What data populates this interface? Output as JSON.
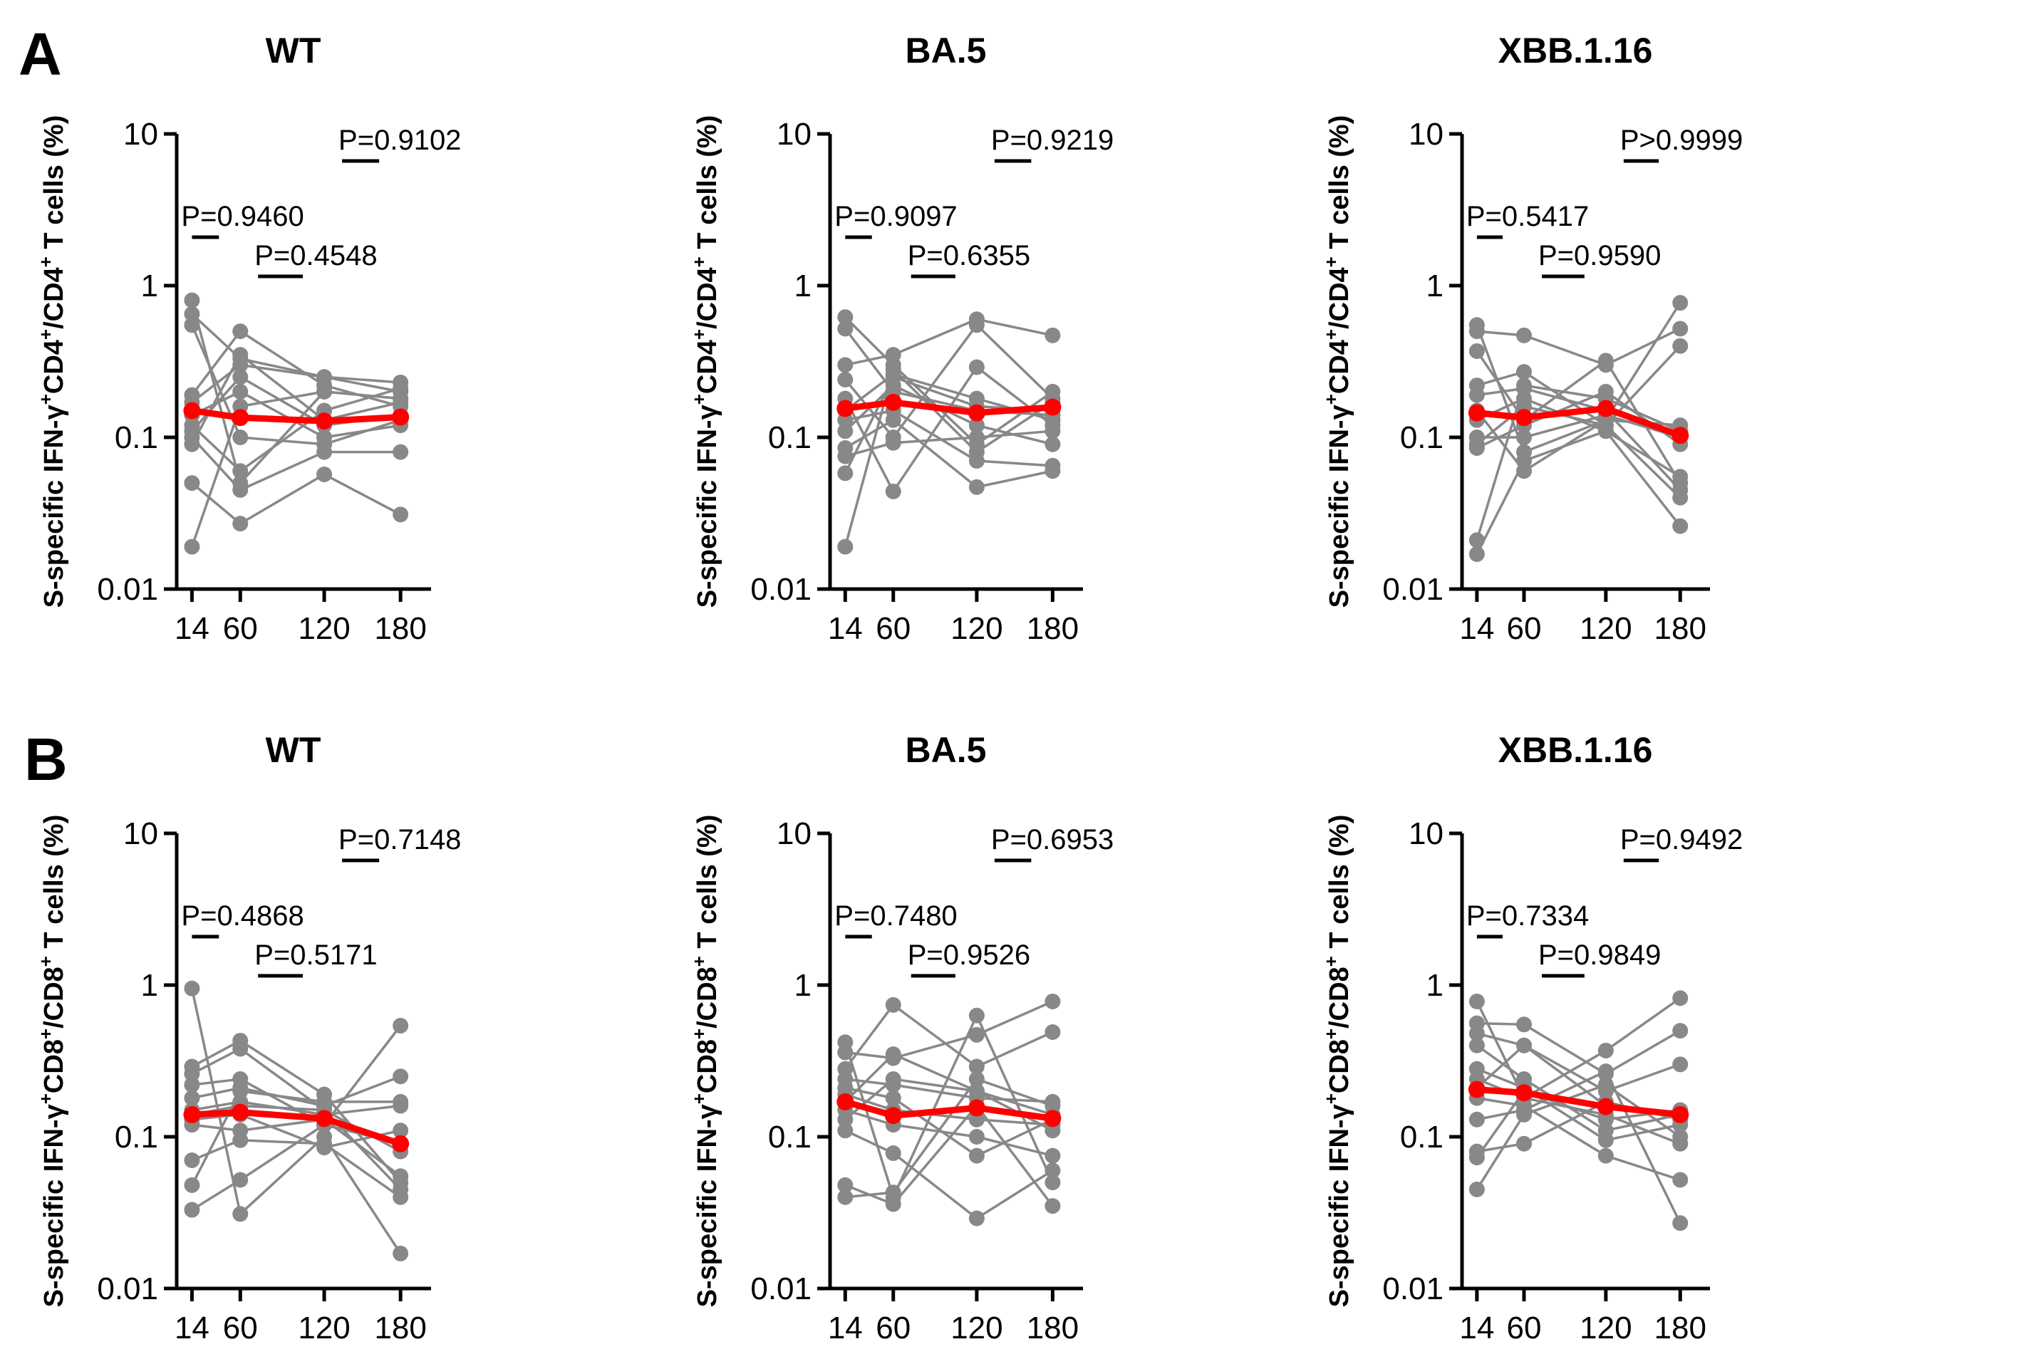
{
  "panels": [
    {
      "letter": "A"
    },
    {
      "letter": "B"
    }
  ],
  "chart_data": [
    {
      "type": "line",
      "panel": "A",
      "title": "WT",
      "ylabel_html": [
        "S-specific IFN-γ",
        "+",
        "CD4",
        "+",
        "/CD4",
        "+",
        " T cells (%)"
      ],
      "xlabel": "",
      "x": [
        14,
        60,
        120,
        180
      ],
      "x_tick_labels": [
        "14",
        "60",
        "120",
        "180"
      ],
      "yscale": "log",
      "ylim": [
        0.01,
        10
      ],
      "y_tick_labels": [
        "10",
        "1",
        "0.1",
        "0.01"
      ],
      "comparisons": [
        {
          "label": "P=0.9460",
          "from": 14,
          "to": 60
        },
        {
          "label": "P=0.4548",
          "from": 60,
          "to": 120
        },
        {
          "label": "P=0.9102",
          "from": 120,
          "to": 180
        }
      ],
      "series": [
        {
          "name": "s1",
          "values": [
            0.8,
            0.05,
            0.2,
            0.18
          ]
        },
        {
          "name": "s2",
          "values": [
            0.65,
            0.33,
            0.25,
            0.2
          ]
        },
        {
          "name": "s3",
          "values": [
            0.55,
            0.1,
            0.09,
            0.13
          ]
        },
        {
          "name": "s4",
          "values": [
            0.19,
            0.5,
            0.22,
            0.16
          ]
        },
        {
          "name": "s5",
          "values": [
            0.17,
            0.3,
            0.25,
            0.23
          ]
        },
        {
          "name": "s6",
          "values": [
            0.14,
            0.2,
            0.1,
            0.12
          ]
        },
        {
          "name": "s7",
          "values": [
            0.12,
            0.06,
            0.15,
            0.21
          ]
        },
        {
          "name": "s8",
          "values": [
            0.11,
            0.25,
            0.12,
            0.14
          ]
        },
        {
          "name": "s9",
          "values": [
            0.1,
            0.045,
            0.08,
            0.08
          ]
        },
        {
          "name": "s10",
          "values": [
            0.09,
            0.35,
            0.13,
            0.17
          ]
        },
        {
          "name": "s11",
          "values": [
            0.05,
            0.027,
            0.057,
            0.031
          ]
        },
        {
          "name": "s12",
          "values": [
            0.019,
            0.16,
            0.2,
            0.18
          ]
        }
      ],
      "median": [
        0.15,
        0.135,
        0.128,
        0.136
      ]
    },
    {
      "type": "line",
      "panel": "A",
      "title": "BA.5",
      "ylabel_html": [
        "S-specific IFN-γ",
        "+",
        "CD4",
        "+",
        "/CD4",
        "+",
        " T cells (%)"
      ],
      "xlabel": "",
      "x": [
        14,
        60,
        120,
        180
      ],
      "x_tick_labels": [
        "14",
        "60",
        "120",
        "180"
      ],
      "yscale": "log",
      "ylim": [
        0.01,
        10
      ],
      "y_tick_labels": [
        "10",
        "1",
        "0.1",
        "0.01"
      ],
      "comparisons": [
        {
          "label": "P=0.9097",
          "from": 14,
          "to": 60
        },
        {
          "label": "P=0.6355",
          "from": 60,
          "to": 120
        },
        {
          "label": "P=0.9219",
          "from": 120,
          "to": 180
        }
      ],
      "series": [
        {
          "name": "s1",
          "values": [
            0.62,
            0.3,
            0.09,
            0.2
          ]
        },
        {
          "name": "s2",
          "values": [
            0.52,
            0.2,
            0.15,
            0.14
          ]
        },
        {
          "name": "s3",
          "values": [
            0.3,
            0.35,
            0.6,
            0.47
          ]
        },
        {
          "name": "s4",
          "values": [
            0.24,
            0.1,
            0.55,
            0.18
          ]
        },
        {
          "name": "s5",
          "values": [
            0.18,
            0.044,
            0.29,
            0.12
          ]
        },
        {
          "name": "s6",
          "values": [
            0.15,
            0.26,
            0.18,
            0.13
          ]
        },
        {
          "name": "s7",
          "values": [
            0.13,
            0.15,
            0.07,
            0.065
          ]
        },
        {
          "name": "s8",
          "values": [
            0.11,
            0.22,
            0.12,
            0.09
          ]
        },
        {
          "name": "s9",
          "values": [
            0.085,
            0.13,
            0.047,
            0.06
          ]
        },
        {
          "name": "s10",
          "values": [
            0.075,
            0.092,
            0.1,
            0.11
          ]
        },
        {
          "name": "s11",
          "values": [
            0.058,
            0.25,
            0.16,
            0.15
          ]
        },
        {
          "name": "s12",
          "values": [
            0.019,
            0.28,
            0.08,
            0.17
          ]
        }
      ],
      "median": [
        0.155,
        0.17,
        0.145,
        0.158
      ]
    },
    {
      "type": "line",
      "panel": "A",
      "title": "XBB.1.16",
      "ylabel_html": [
        "S-specific IFN-γ",
        "+",
        "CD4",
        "+",
        "/CD4",
        "+",
        " T cells (%)"
      ],
      "xlabel": "",
      "x": [
        14,
        60,
        120,
        180
      ],
      "x_tick_labels": [
        "14",
        "60",
        "120",
        "180"
      ],
      "yscale": "log",
      "ylim": [
        0.01,
        10
      ],
      "y_tick_labels": [
        "10",
        "1",
        "0.1",
        "0.01"
      ],
      "comparisons": [
        {
          "label": "P=0.5417",
          "from": 14,
          "to": 60
        },
        {
          "label": "P=0.9590",
          "from": 60,
          "to": 120
        },
        {
          "label": "P>0.9999",
          "from": 120,
          "to": 180
        }
      ],
      "series": [
        {
          "name": "s1",
          "values": [
            0.55,
            0.08,
            0.13,
            0.77
          ]
        },
        {
          "name": "s2",
          "values": [
            0.5,
            0.47,
            0.3,
            0.52
          ]
        },
        {
          "name": "s3",
          "values": [
            0.37,
            0.13,
            0.32,
            0.05
          ]
        },
        {
          "name": "s4",
          "values": [
            0.22,
            0.27,
            0.12,
            0.4
          ]
        },
        {
          "name": "s5",
          "values": [
            0.19,
            0.21,
            0.15,
            0.045
          ]
        },
        {
          "name": "s6",
          "values": [
            0.15,
            0.06,
            0.13,
            0.12
          ]
        },
        {
          "name": "s7",
          "values": [
            0.13,
            0.18,
            0.11,
            0.026
          ]
        },
        {
          "name": "s8",
          "values": [
            0.1,
            0.1,
            0.14,
            0.1
          ]
        },
        {
          "name": "s9",
          "values": [
            0.09,
            0.16,
            0.12,
            0.04
          ]
        },
        {
          "name": "s10",
          "values": [
            0.085,
            0.12,
            0.2,
            0.09
          ]
        },
        {
          "name": "s11",
          "values": [
            0.021,
            0.22,
            0.18,
            0.11
          ]
        },
        {
          "name": "s12",
          "values": [
            0.017,
            0.07,
            0.11,
            0.055
          ]
        }
      ],
      "median": [
        0.145,
        0.135,
        0.155,
        0.103
      ]
    },
    {
      "type": "line",
      "panel": "B",
      "title": "WT",
      "ylabel_html": [
        "S-specific IFN-γ",
        "+",
        "CD8",
        "+",
        "/CD8",
        "+",
        " T cells (%)"
      ],
      "xlabel": "",
      "x": [
        14,
        60,
        120,
        180
      ],
      "x_tick_labels": [
        "14",
        "60",
        "120",
        "180"
      ],
      "yscale": "log",
      "ylim": [
        0.01,
        10
      ],
      "y_tick_labels": [
        "10",
        "1",
        "0.1",
        "0.01"
      ],
      "comparisons": [
        {
          "label": "P=0.4868",
          "from": 14,
          "to": 60
        },
        {
          "label": "P=0.5171",
          "from": 60,
          "to": 120
        },
        {
          "label": "P=0.7148",
          "from": 120,
          "to": 180
        }
      ],
      "series": [
        {
          "name": "s1",
          "values": [
            0.95,
            0.031,
            0.1,
            0.017
          ]
        },
        {
          "name": "s2",
          "values": [
            0.29,
            0.43,
            0.19,
            0.05
          ]
        },
        {
          "name": "s3",
          "values": [
            0.26,
            0.38,
            0.15,
            0.045
          ]
        },
        {
          "name": "s4",
          "values": [
            0.22,
            0.24,
            0.12,
            0.54
          ]
        },
        {
          "name": "s5",
          "values": [
            0.18,
            0.21,
            0.16,
            0.25
          ]
        },
        {
          "name": "s6",
          "values": [
            0.15,
            0.17,
            0.14,
            0.16
          ]
        },
        {
          "name": "s7",
          "values": [
            0.13,
            0.14,
            0.085,
            0.11
          ]
        },
        {
          "name": "s8",
          "values": [
            0.12,
            0.11,
            0.13,
            0.055
          ]
        },
        {
          "name": "s9",
          "values": [
            0.07,
            0.095,
            0.09,
            0.04
          ]
        },
        {
          "name": "s10",
          "values": [
            0.048,
            0.2,
            0.17,
            0.17
          ]
        },
        {
          "name": "s11",
          "values": [
            0.033,
            0.052,
            0.12,
            0.09
          ]
        },
        {
          "name": "s12",
          "values": [
            0.14,
            0.16,
            0.15,
            0.08
          ]
        }
      ],
      "median": [
        0.14,
        0.145,
        0.132,
        0.09
      ]
    },
    {
      "type": "line",
      "panel": "B",
      "title": "BA.5",
      "ylabel_html": [
        "S-specific IFN-γ",
        "+",
        "CD8",
        "+",
        "/CD8",
        "+",
        " T cells (%)"
      ],
      "xlabel": "",
      "x": [
        14,
        60,
        120,
        180
      ],
      "x_tick_labels": [
        "14",
        "60",
        "120",
        "180"
      ],
      "yscale": "log",
      "ylim": [
        0.01,
        10
      ],
      "y_tick_labels": [
        "10",
        "1",
        "0.1",
        "0.01"
      ],
      "comparisons": [
        {
          "label": "P=0.7480",
          "from": 14,
          "to": 60
        },
        {
          "label": "P=0.9526",
          "from": 60,
          "to": 120
        },
        {
          "label": "P=0.6953",
          "from": 120,
          "to": 180
        }
      ],
      "series": [
        {
          "name": "s1",
          "values": [
            0.42,
            0.04,
            0.63,
            0.05
          ]
        },
        {
          "name": "s2",
          "values": [
            0.36,
            0.33,
            0.47,
            0.78
          ]
        },
        {
          "name": "s3",
          "values": [
            0.28,
            0.74,
            0.29,
            0.49
          ]
        },
        {
          "name": "s4",
          "values": [
            0.24,
            0.22,
            0.18,
            0.17
          ]
        },
        {
          "name": "s5",
          "values": [
            0.21,
            0.18,
            0.075,
            0.13
          ]
        },
        {
          "name": "s6",
          "values": [
            0.19,
            0.15,
            0.13,
            0.12
          ]
        },
        {
          "name": "s7",
          "values": [
            0.15,
            0.12,
            0.1,
            0.075
          ]
        },
        {
          "name": "s8",
          "values": [
            0.11,
            0.078,
            0.029,
            0.06
          ]
        },
        {
          "name": "s9",
          "values": [
            0.048,
            0.036,
            0.16,
            0.035
          ]
        },
        {
          "name": "s10",
          "values": [
            0.04,
            0.043,
            0.24,
            0.16
          ]
        },
        {
          "name": "s11",
          "values": [
            0.17,
            0.35,
            0.2,
            0.11
          ]
        },
        {
          "name": "s12",
          "values": [
            0.13,
            0.24,
            0.2,
            0.14
          ]
        }
      ],
      "median": [
        0.17,
        0.138,
        0.155,
        0.132
      ]
    },
    {
      "type": "line",
      "panel": "B",
      "title": "XBB.1.16",
      "ylabel_html": [
        "S-specific IFN-γ",
        "+",
        "CD8",
        "+",
        "/CD8",
        "+",
        " T cells (%)"
      ],
      "xlabel": "",
      "x": [
        14,
        60,
        120,
        180
      ],
      "x_tick_labels": [
        "14",
        "60",
        "120",
        "180"
      ],
      "yscale": "log",
      "ylim": [
        0.01,
        10
      ],
      "y_tick_labels": [
        "10",
        "1",
        "0.1",
        "0.01"
      ],
      "comparisons": [
        {
          "label": "P=0.7334",
          "from": 14,
          "to": 60
        },
        {
          "label": "P=0.9849",
          "from": 60,
          "to": 120
        },
        {
          "label": "P=0.9492",
          "from": 120,
          "to": 180
        }
      ],
      "series": [
        {
          "name": "s1",
          "values": [
            0.78,
            0.18,
            0.37,
            0.82
          ]
        },
        {
          "name": "s2",
          "values": [
            0.56,
            0.55,
            0.26,
            0.5
          ]
        },
        {
          "name": "s3",
          "values": [
            0.48,
            0.4,
            0.2,
            0.3
          ]
        },
        {
          "name": "s4",
          "values": [
            0.4,
            0.24,
            0.11,
            0.14
          ]
        },
        {
          "name": "s5",
          "values": [
            0.28,
            0.21,
            0.095,
            0.12
          ]
        },
        {
          "name": "s6",
          "values": [
            0.24,
            0.18,
            0.14,
            0.09
          ]
        },
        {
          "name": "s7",
          "values": [
            0.18,
            0.16,
            0.075,
            0.052
          ]
        },
        {
          "name": "s8",
          "values": [
            0.13,
            0.15,
            0.27,
            0.027
          ]
        },
        {
          "name": "s9",
          "values": [
            0.08,
            0.09,
            0.17,
            0.13
          ]
        },
        {
          "name": "s10",
          "values": [
            0.073,
            0.2,
            0.13,
            0.15
          ]
        },
        {
          "name": "s11",
          "values": [
            0.045,
            0.14,
            0.22,
            0.1
          ]
        },
        {
          "name": "s12",
          "values": [
            0.21,
            0.4,
            0.16,
            0.14
          ]
        }
      ],
      "median": [
        0.205,
        0.195,
        0.158,
        0.14
      ]
    }
  ],
  "colors": {
    "individual": "#888888",
    "median": "#ff0000",
    "axis": "#000000"
  }
}
